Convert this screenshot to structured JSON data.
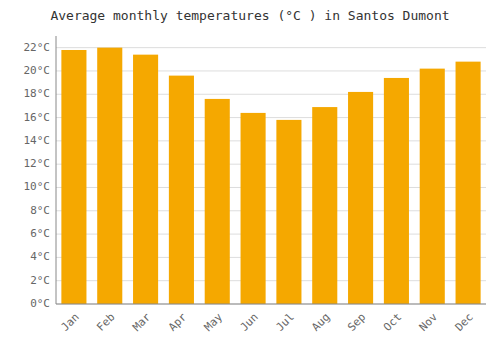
{
  "chart_data": {
    "type": "bar",
    "title": "Average monthly temperatures (°C ) in Santos Dumont",
    "categories": [
      "Jan",
      "Feb",
      "Mar",
      "Apr",
      "May",
      "Jun",
      "Jul",
      "Aug",
      "Sep",
      "Oct",
      "Nov",
      "Dec"
    ],
    "values": [
      21.8,
      22.0,
      21.4,
      19.6,
      17.6,
      16.4,
      15.8,
      16.9,
      18.2,
      19.4,
      20.2,
      20.8
    ],
    "color": "#F5A800",
    "ylim": [
      0,
      23
    ],
    "yticks": [
      {
        "value": 0,
        "label": "0°C"
      },
      {
        "value": 2,
        "label": "2°C"
      },
      {
        "value": 4,
        "label": "4°C"
      },
      {
        "value": 6,
        "label": "6°C"
      },
      {
        "value": 8,
        "label": "8°C"
      },
      {
        "value": 10,
        "label": "10°C"
      },
      {
        "value": 12,
        "label": "12°C"
      },
      {
        "value": 14,
        "label": "14°C"
      },
      {
        "value": 16,
        "label": "16°C"
      },
      {
        "value": 18,
        "label": "18°C"
      },
      {
        "value": 20,
        "label": "20°C"
      },
      {
        "value": 22,
        "label": "22°C"
      }
    ],
    "grid": true
  }
}
